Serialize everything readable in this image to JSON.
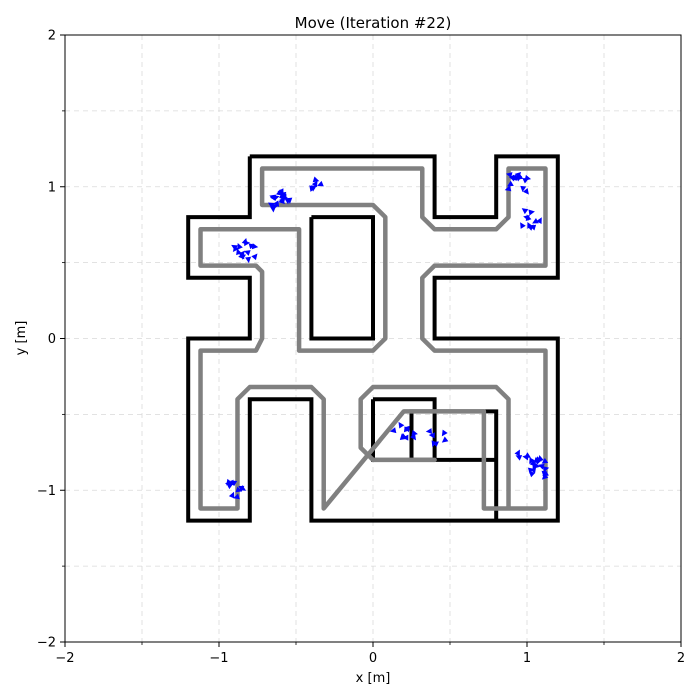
{
  "chart_data": {
    "type": "line",
    "title": "Move (Iteration #22)",
    "xlabel": "x [m]",
    "ylabel": "y [m]",
    "xlim": [
      -2,
      2
    ],
    "ylim": [
      -2,
      2
    ],
    "major_ticks": [
      -2,
      -1,
      0,
      1,
      2
    ],
    "tick_labels": [
      "−2",
      "−1",
      "0",
      "1",
      "2"
    ],
    "minor_ticks": [
      -1.5,
      -0.5,
      0.5,
      1.5
    ],
    "grid": true,
    "grid_style": "dashed",
    "colors": {
      "walls": "#000000",
      "path": "#808080",
      "particles": "#0000ff"
    },
    "series": [
      {
        "role": "outer-wall",
        "points": [
          [
            -0.8,
            1.2
          ],
          [
            0.4,
            1.2
          ],
          [
            0.4,
            0.8
          ],
          [
            0.8,
            0.8
          ],
          [
            0.8,
            1.2
          ],
          [
            1.2,
            1.2
          ],
          [
            1.2,
            0.4
          ],
          [
            0.4,
            0.4
          ],
          [
            0.4,
            0
          ],
          [
            1.2,
            0
          ],
          [
            1.2,
            -1.2
          ],
          [
            0.8,
            -1.2
          ],
          [
            0.8,
            -0.48
          ],
          [
            0.25,
            -0.48
          ],
          [
            0.25,
            -0.8
          ],
          [
            0.8,
            -0.8
          ],
          [
            0.8,
            -1.2
          ],
          [
            -0.4,
            -1.2
          ],
          [
            -0.4,
            -0.4
          ],
          [
            -0.8,
            -0.4
          ],
          [
            -0.8,
            -1.2
          ],
          [
            -1.2,
            -1.2
          ],
          [
            -1.2,
            0
          ],
          [
            -0.8,
            0
          ],
          [
            -0.8,
            0.4
          ],
          [
            -1.2,
            0.4
          ],
          [
            -1.2,
            0.8
          ],
          [
            -0.8,
            0.8
          ],
          [
            -0.8,
            1.2
          ]
        ]
      },
      {
        "role": "inner-wall-top",
        "points": [
          [
            -0.4,
            0.8
          ],
          [
            0,
            0.8
          ],
          [
            0,
            0
          ],
          [
            -0.4,
            0
          ],
          [
            -0.4,
            0.8
          ]
        ]
      },
      {
        "role": "inner-wall-bottom",
        "points": [
          [
            0,
            -0.4
          ],
          [
            0.4,
            -0.4
          ],
          [
            0.4,
            -0.8
          ],
          [
            0,
            -0.8
          ],
          [
            0,
            -0.4
          ]
        ]
      },
      {
        "role": "planned-path",
        "points": [
          [
            0.4,
            -0.8
          ],
          [
            0.0,
            -0.8
          ],
          [
            -0.08,
            -0.72
          ],
          [
            -0.08,
            -0.4
          ],
          [
            0,
            -0.32
          ],
          [
            0.8,
            -0.32
          ],
          [
            0.88,
            -0.4
          ],
          [
            0.88,
            -1.12
          ],
          [
            0.72,
            -1.12
          ],
          [
            0.72,
            -0.48
          ],
          [
            0.2,
            -0.48
          ],
          [
            -0.32,
            -1.12
          ],
          [
            -0.32,
            -0.4
          ],
          [
            -0.4,
            -0.32
          ],
          [
            -0.8,
            -0.32
          ],
          [
            -0.88,
            -0.4
          ],
          [
            -0.88,
            -1.12
          ],
          [
            -1.12,
            -1.12
          ],
          [
            -1.12,
            -0.08
          ],
          [
            -0.76,
            -0.08
          ],
          [
            -0.72,
            0
          ],
          [
            -0.72,
            0.44
          ],
          [
            -0.76,
            0.48
          ],
          [
            -1.12,
            0.48
          ],
          [
            -1.12,
            0.72
          ],
          [
            -0.48,
            0.72
          ],
          [
            -0.48,
            -0.08
          ],
          [
            -0.4,
            -0.08
          ],
          [
            0.0,
            -0.08
          ],
          [
            0.08,
            0
          ],
          [
            0.08,
            0.8
          ],
          [
            0,
            0.88
          ],
          [
            -0.72,
            0.88
          ],
          [
            -0.72,
            1.12
          ],
          [
            0.32,
            1.12
          ],
          [
            0.32,
            0.8
          ],
          [
            0.4,
            0.72
          ],
          [
            0.8,
            0.72
          ],
          [
            0.88,
            0.8
          ],
          [
            0.88,
            1.12
          ],
          [
            1.12,
            1.12
          ],
          [
            1.12,
            0.48
          ],
          [
            0.4,
            0.48
          ],
          [
            0.32,
            0.4
          ],
          [
            0.32,
            0
          ],
          [
            0.4,
            -0.08
          ],
          [
            1.12,
            -0.08
          ],
          [
            1.12,
            -1.12
          ],
          [
            0.88,
            -1.12
          ]
        ]
      }
    ],
    "particles": [
      {
        "cx": -0.6,
        "cy": 0.92,
        "n": 18
      },
      {
        "cx": -0.38,
        "cy": 1.0,
        "n": 5
      },
      {
        "cx": -0.83,
        "cy": 0.58,
        "n": 14
      },
      {
        "cx": 0.95,
        "cy": 1.02,
        "n": 14
      },
      {
        "cx": 1.02,
        "cy": 0.78,
        "n": 10
      },
      {
        "cx": 0.2,
        "cy": -0.62,
        "n": 9
      },
      {
        "cx": 0.43,
        "cy": -0.65,
        "n": 6
      },
      {
        "cx": 1.08,
        "cy": -0.85,
        "n": 16
      },
      {
        "cx": 0.98,
        "cy": -0.78,
        "n": 5
      },
      {
        "cx": -0.9,
        "cy": -0.99,
        "n": 10
      }
    ]
  }
}
